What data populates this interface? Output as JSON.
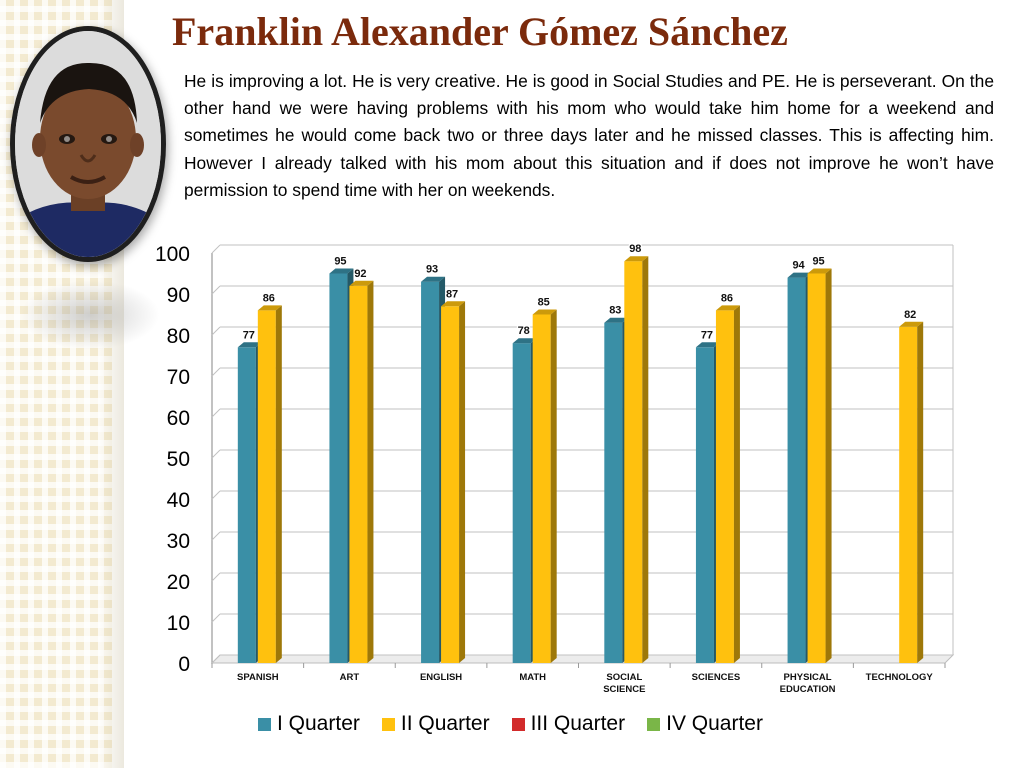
{
  "title": "Franklin Alexander Gómez Sánchez",
  "description": "He is improving a lot.  He is very creative.  He is good in Social Studies and PE.   He is perseverant.  On the other hand we were having problems with his mom who would take him home for a weekend and sometimes he would come back two or three days later and he missed classes. This is affecting him. However I already talked with his mom about this situation and if does not improve he won’t have permission to spend time with her on weekends.",
  "portrait": {
    "icon": "student-photo"
  },
  "colors": {
    "title": "#7b2a0c",
    "q1": "#3a8fa6",
    "q2": "#ffc10e",
    "q3": "#d22b2b",
    "q4": "#7ab648"
  },
  "chart_data": {
    "type": "bar",
    "categories": [
      [
        "SPANISH"
      ],
      [
        "ART"
      ],
      [
        "ENGLISH"
      ],
      [
        "MATH"
      ],
      [
        "SOCIAL",
        "SCIENCE"
      ],
      [
        "SCIENCES"
      ],
      [
        "PHYSICAL",
        "EDUCATION"
      ],
      [
        "TECHNOLOGY"
      ]
    ],
    "series": [
      {
        "name": "I Quarter",
        "color": "#3a8fa6",
        "values": [
          77,
          95,
          93,
          78,
          83,
          77,
          94,
          null
        ]
      },
      {
        "name": "II Quarter",
        "color": "#ffc10e",
        "values": [
          86,
          92,
          87,
          85,
          98,
          86,
          95,
          82
        ]
      },
      {
        "name": "III Quarter",
        "color": "#d22b2b",
        "values": [
          null,
          null,
          null,
          null,
          null,
          null,
          null,
          null
        ]
      },
      {
        "name": "IV Quarter",
        "color": "#7ab648",
        "values": [
          null,
          null,
          null,
          null,
          null,
          null,
          null,
          null
        ]
      }
    ],
    "ylim": [
      0,
      100
    ],
    "yticks": [
      0,
      10,
      20,
      30,
      40,
      50,
      60,
      70,
      80,
      90,
      100
    ],
    "grid": true,
    "legend_position": "bottom"
  }
}
